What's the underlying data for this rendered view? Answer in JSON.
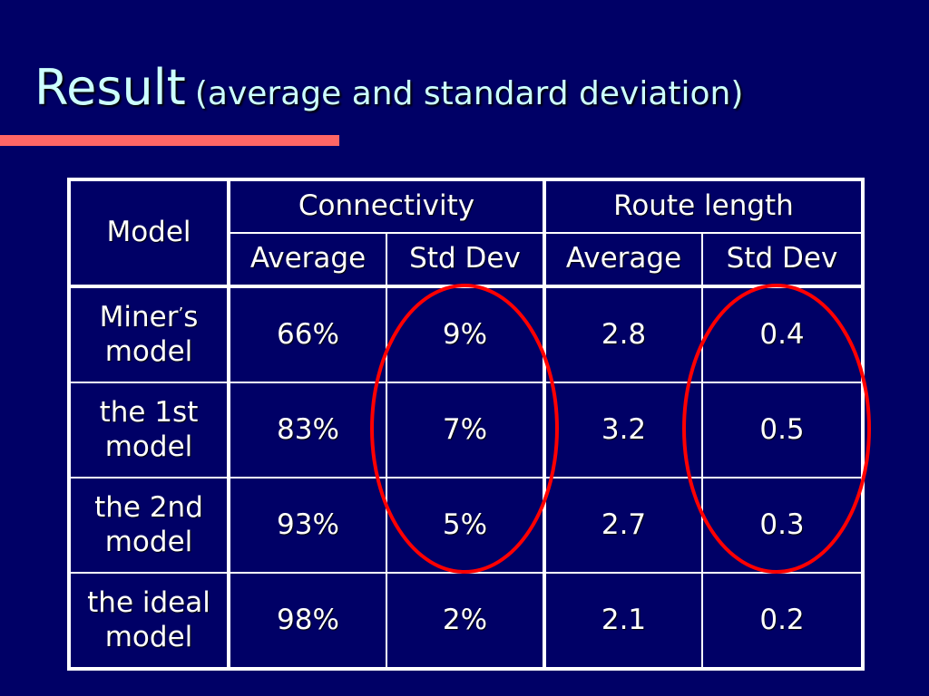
{
  "title": {
    "main": "Result",
    "subtitle": "(average and standard deviation)"
  },
  "colors": {
    "background": "#000066",
    "title_text": "#ccffff",
    "title_rule": "#ff6666",
    "table_text": "#ffffff",
    "highlight_ellipse": "#ff0000"
  },
  "table": {
    "model_header": "Model",
    "groups": [
      "Connectivity",
      "Route length"
    ],
    "subheaders": [
      "Average",
      "Std Dev",
      "Average",
      "Std Dev"
    ],
    "rows": [
      {
        "model_line1": "Miner",
        "model_apostrophe": "’",
        "model_line1_end": "s",
        "model_line2": "model",
        "values": [
          "66%",
          "9%",
          "2.8",
          "0.4"
        ]
      },
      {
        "model_line1": "the 1st",
        "model_line2": "model",
        "values": [
          "83%",
          "7%",
          "3.2",
          "0.5"
        ]
      },
      {
        "model_line1": "the 2nd",
        "model_line2": "model",
        "values": [
          "93%",
          "5%",
          "2.7",
          "0.3"
        ]
      },
      {
        "model_line1": "the ideal",
        "model_line2": "model",
        "values": [
          "98%",
          "2%",
          "2.1",
          "0.2"
        ]
      }
    ]
  },
  "highlights": [
    {
      "column": "Connectivity Std Dev"
    },
    {
      "column": "Route length Std Dev"
    }
  ]
}
